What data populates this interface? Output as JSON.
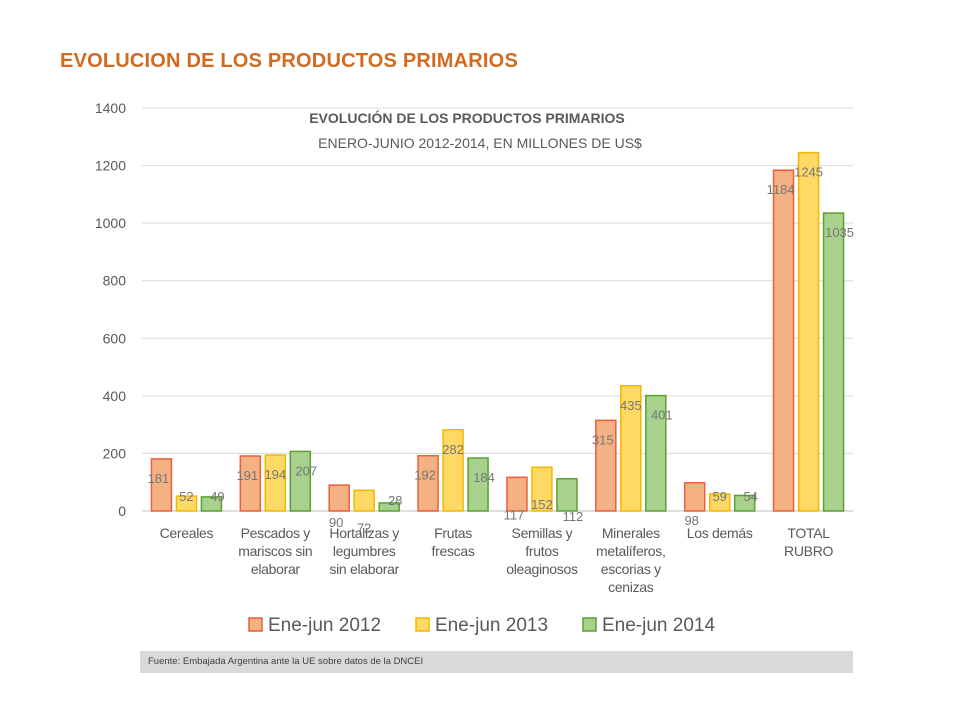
{
  "page_title": "EVOLUCION DE LOS PRODUCTOS PRIMARIOS",
  "footer": "Fuente: Embajada Argentina ante la UE sobre datos de la DNCEI",
  "chart_data": {
    "type": "bar",
    "title": "EVOLUCIÓN DE LOS PRODUCTOS PRIMARIOS",
    "subtitle": "ENERO-JUNIO 2012-2014, EN MILLONES DE US$",
    "ylim": [
      0,
      1400
    ],
    "yticks": [
      0,
      200,
      400,
      600,
      800,
      1000,
      1200,
      1400
    ],
    "grid": true,
    "legend_position": "bottom",
    "categories": [
      [
        "Cereales"
      ],
      [
        "Pescados y",
        "mariscos sin",
        "elaborar"
      ],
      [
        "Hortalizas y",
        "legumbres",
        "sin elaborar"
      ],
      [
        "Frutas",
        "frescas"
      ],
      [
        "Semillas y",
        "frutos",
        "oleaginosos"
      ],
      [
        "Minerales",
        "metalíferos,",
        "escorias y",
        "cenizas"
      ],
      [
        "Los demás"
      ],
      [
        "TOTAL",
        "RUBRO"
      ]
    ],
    "series": [
      {
        "name": "Ene-jun 2012",
        "fill": "#F4B183",
        "stroke": "#E8603C",
        "values": [
          181,
          191,
          90,
          192,
          117,
          315,
          98,
          1184
        ]
      },
      {
        "name": "Ene-jun 2013",
        "fill": "#FFD966",
        "stroke": "#F2B800",
        "values": [
          52,
          194,
          72,
          282,
          152,
          435,
          59,
          1245
        ]
      },
      {
        "name": "Ene-jun 2014",
        "fill": "#A9D18E",
        "stroke": "#5AA032",
        "values": [
          49,
          207,
          28,
          184,
          112,
          401,
          54,
          1035
        ]
      }
    ]
  }
}
